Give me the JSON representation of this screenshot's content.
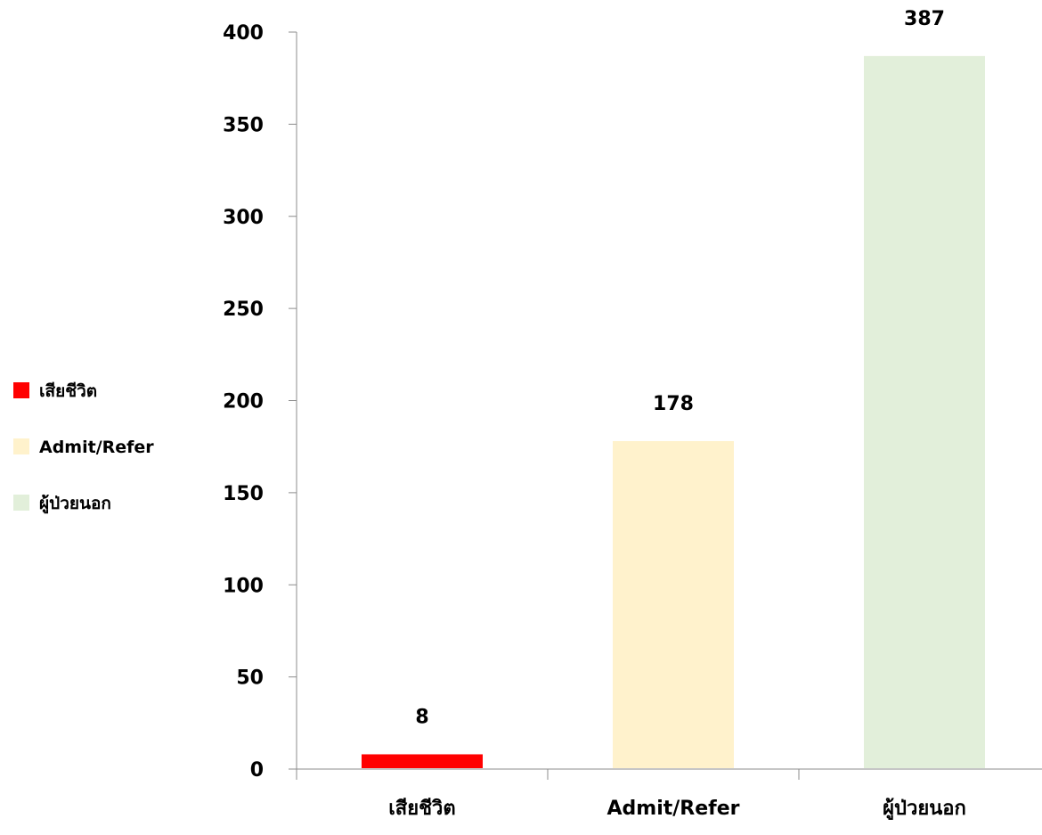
{
  "chart_data": {
    "type": "bar",
    "categories": [
      "เสียชีวิต",
      "Admit/Refer",
      "ผู้ป่วยนอก"
    ],
    "values": [
      8,
      178,
      387
    ],
    "colors": [
      "#ff0000",
      "#fff2cc",
      "#e2efda"
    ],
    "ylim": [
      0,
      400
    ],
    "yticks": [
      0,
      50,
      100,
      150,
      200,
      250,
      300,
      350,
      400
    ],
    "grid": false,
    "legend": {
      "position": "left",
      "entries": [
        "เสียชีวิต",
        "Admit/Refer",
        "ผู้ป่วยนอก"
      ]
    }
  }
}
